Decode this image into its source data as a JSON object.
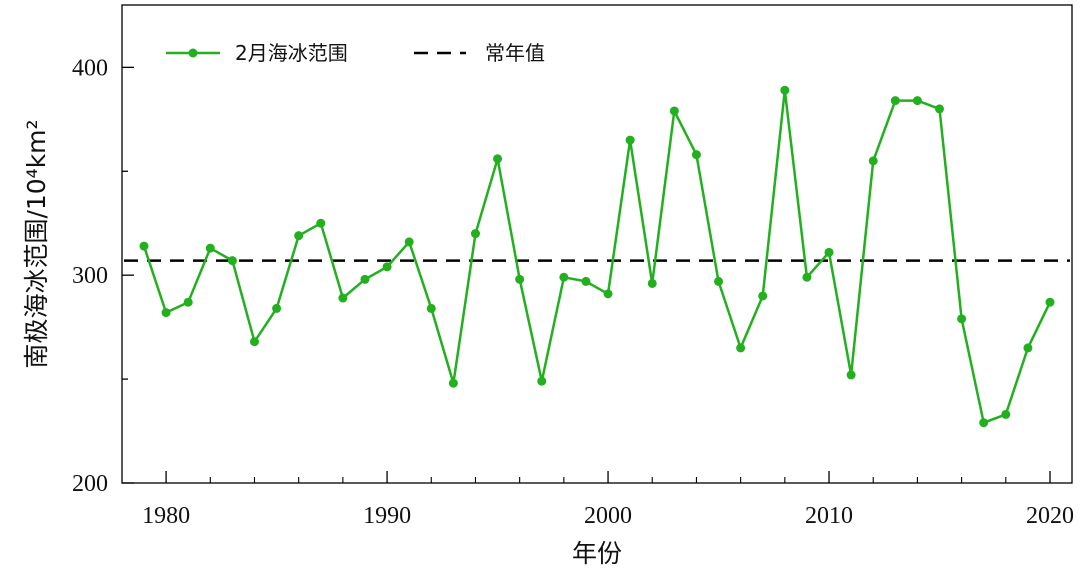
{
  "chart_data": {
    "type": "line",
    "xlabel": "年份",
    "ylabel": "南极海冰范围/10⁴km²",
    "xlim": [
      1978,
      2021
    ],
    "ylim": [
      200,
      430
    ],
    "xticks": [
      1980,
      1990,
      2000,
      2010,
      2020
    ],
    "yticks": [
      200,
      300,
      400
    ],
    "x": [
      1979,
      1980,
      1981,
      1982,
      1983,
      1984,
      1985,
      1986,
      1987,
      1988,
      1989,
      1990,
      1991,
      1992,
      1993,
      1994,
      1995,
      1996,
      1997,
      1998,
      1999,
      2000,
      2001,
      2002,
      2003,
      2004,
      2005,
      2006,
      2007,
      2008,
      2009,
      2010,
      2011,
      2012,
      2013,
      2014,
      2015,
      2016,
      2017,
      2018,
      2019,
      2020
    ],
    "series": [
      {
        "name": "2月海冰范围",
        "color": "#22b01f",
        "marker": "circle",
        "values": [
          314,
          282,
          287,
          313,
          307,
          268,
          284,
          319,
          325,
          289,
          298,
          304,
          316,
          284,
          248,
          320,
          356,
          298,
          249,
          299,
          297,
          291,
          365,
          296,
          379,
          358,
          297,
          265,
          290,
          389,
          299,
          311,
          252,
          355,
          384,
          384,
          380,
          279,
          229,
          233,
          265,
          287
        ]
      },
      {
        "name": "常年值",
        "color": "#000000",
        "style": "dashed",
        "value": 307
      }
    ],
    "legend_position": "top-left",
    "grid": false
  }
}
